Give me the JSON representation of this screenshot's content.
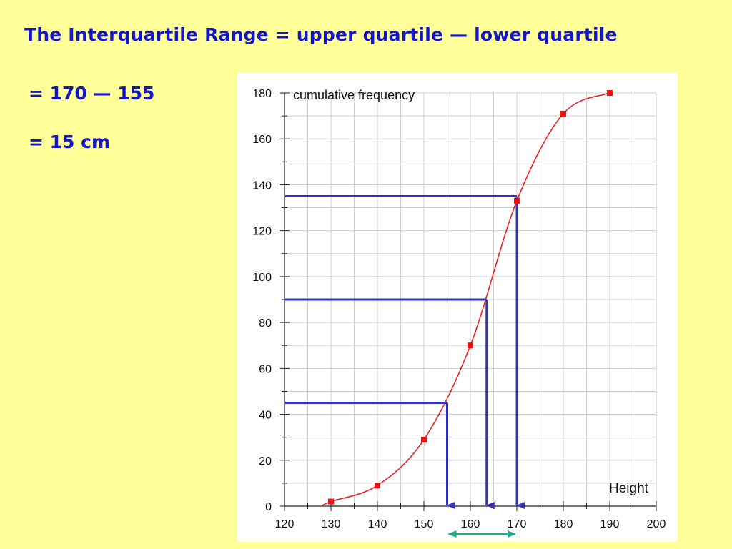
{
  "slide": {
    "title": "The Interquartile Range = upper quartile — lower quartile",
    "line1": "= 170 — 155",
    "line2": "= 15 cm"
  },
  "chart_data": {
    "type": "line",
    "ylabel": "cumulative frequency",
    "xlabel": "Height",
    "xlim": [
      120,
      200
    ],
    "ylim": [
      0,
      180
    ],
    "x_ticks": [
      120,
      130,
      140,
      150,
      160,
      170,
      180,
      190,
      200
    ],
    "y_ticks": [
      0,
      20,
      40,
      60,
      80,
      100,
      120,
      140,
      160,
      180
    ],
    "grid": true,
    "series": [
      {
        "color": "#EE2222",
        "points": [
          {
            "x": 130,
            "y": 2
          },
          {
            "x": 140,
            "y": 9
          },
          {
            "x": 150,
            "y": 29
          },
          {
            "x": 160,
            "y": 70
          },
          {
            "x": 170,
            "y": 133
          },
          {
            "x": 180,
            "y": 171
          },
          {
            "x": 190,
            "y": 180
          }
        ]
      }
    ],
    "quartile_guides": [
      {
        "y": 45,
        "x": 155
      },
      {
        "y": 90,
        "x": 163.5
      },
      {
        "y": 135,
        "x": 170
      }
    ],
    "iqr_arrow": {
      "from": 155,
      "to": 170,
      "color": "#22AA88"
    },
    "guide_color": "#3333BB"
  }
}
